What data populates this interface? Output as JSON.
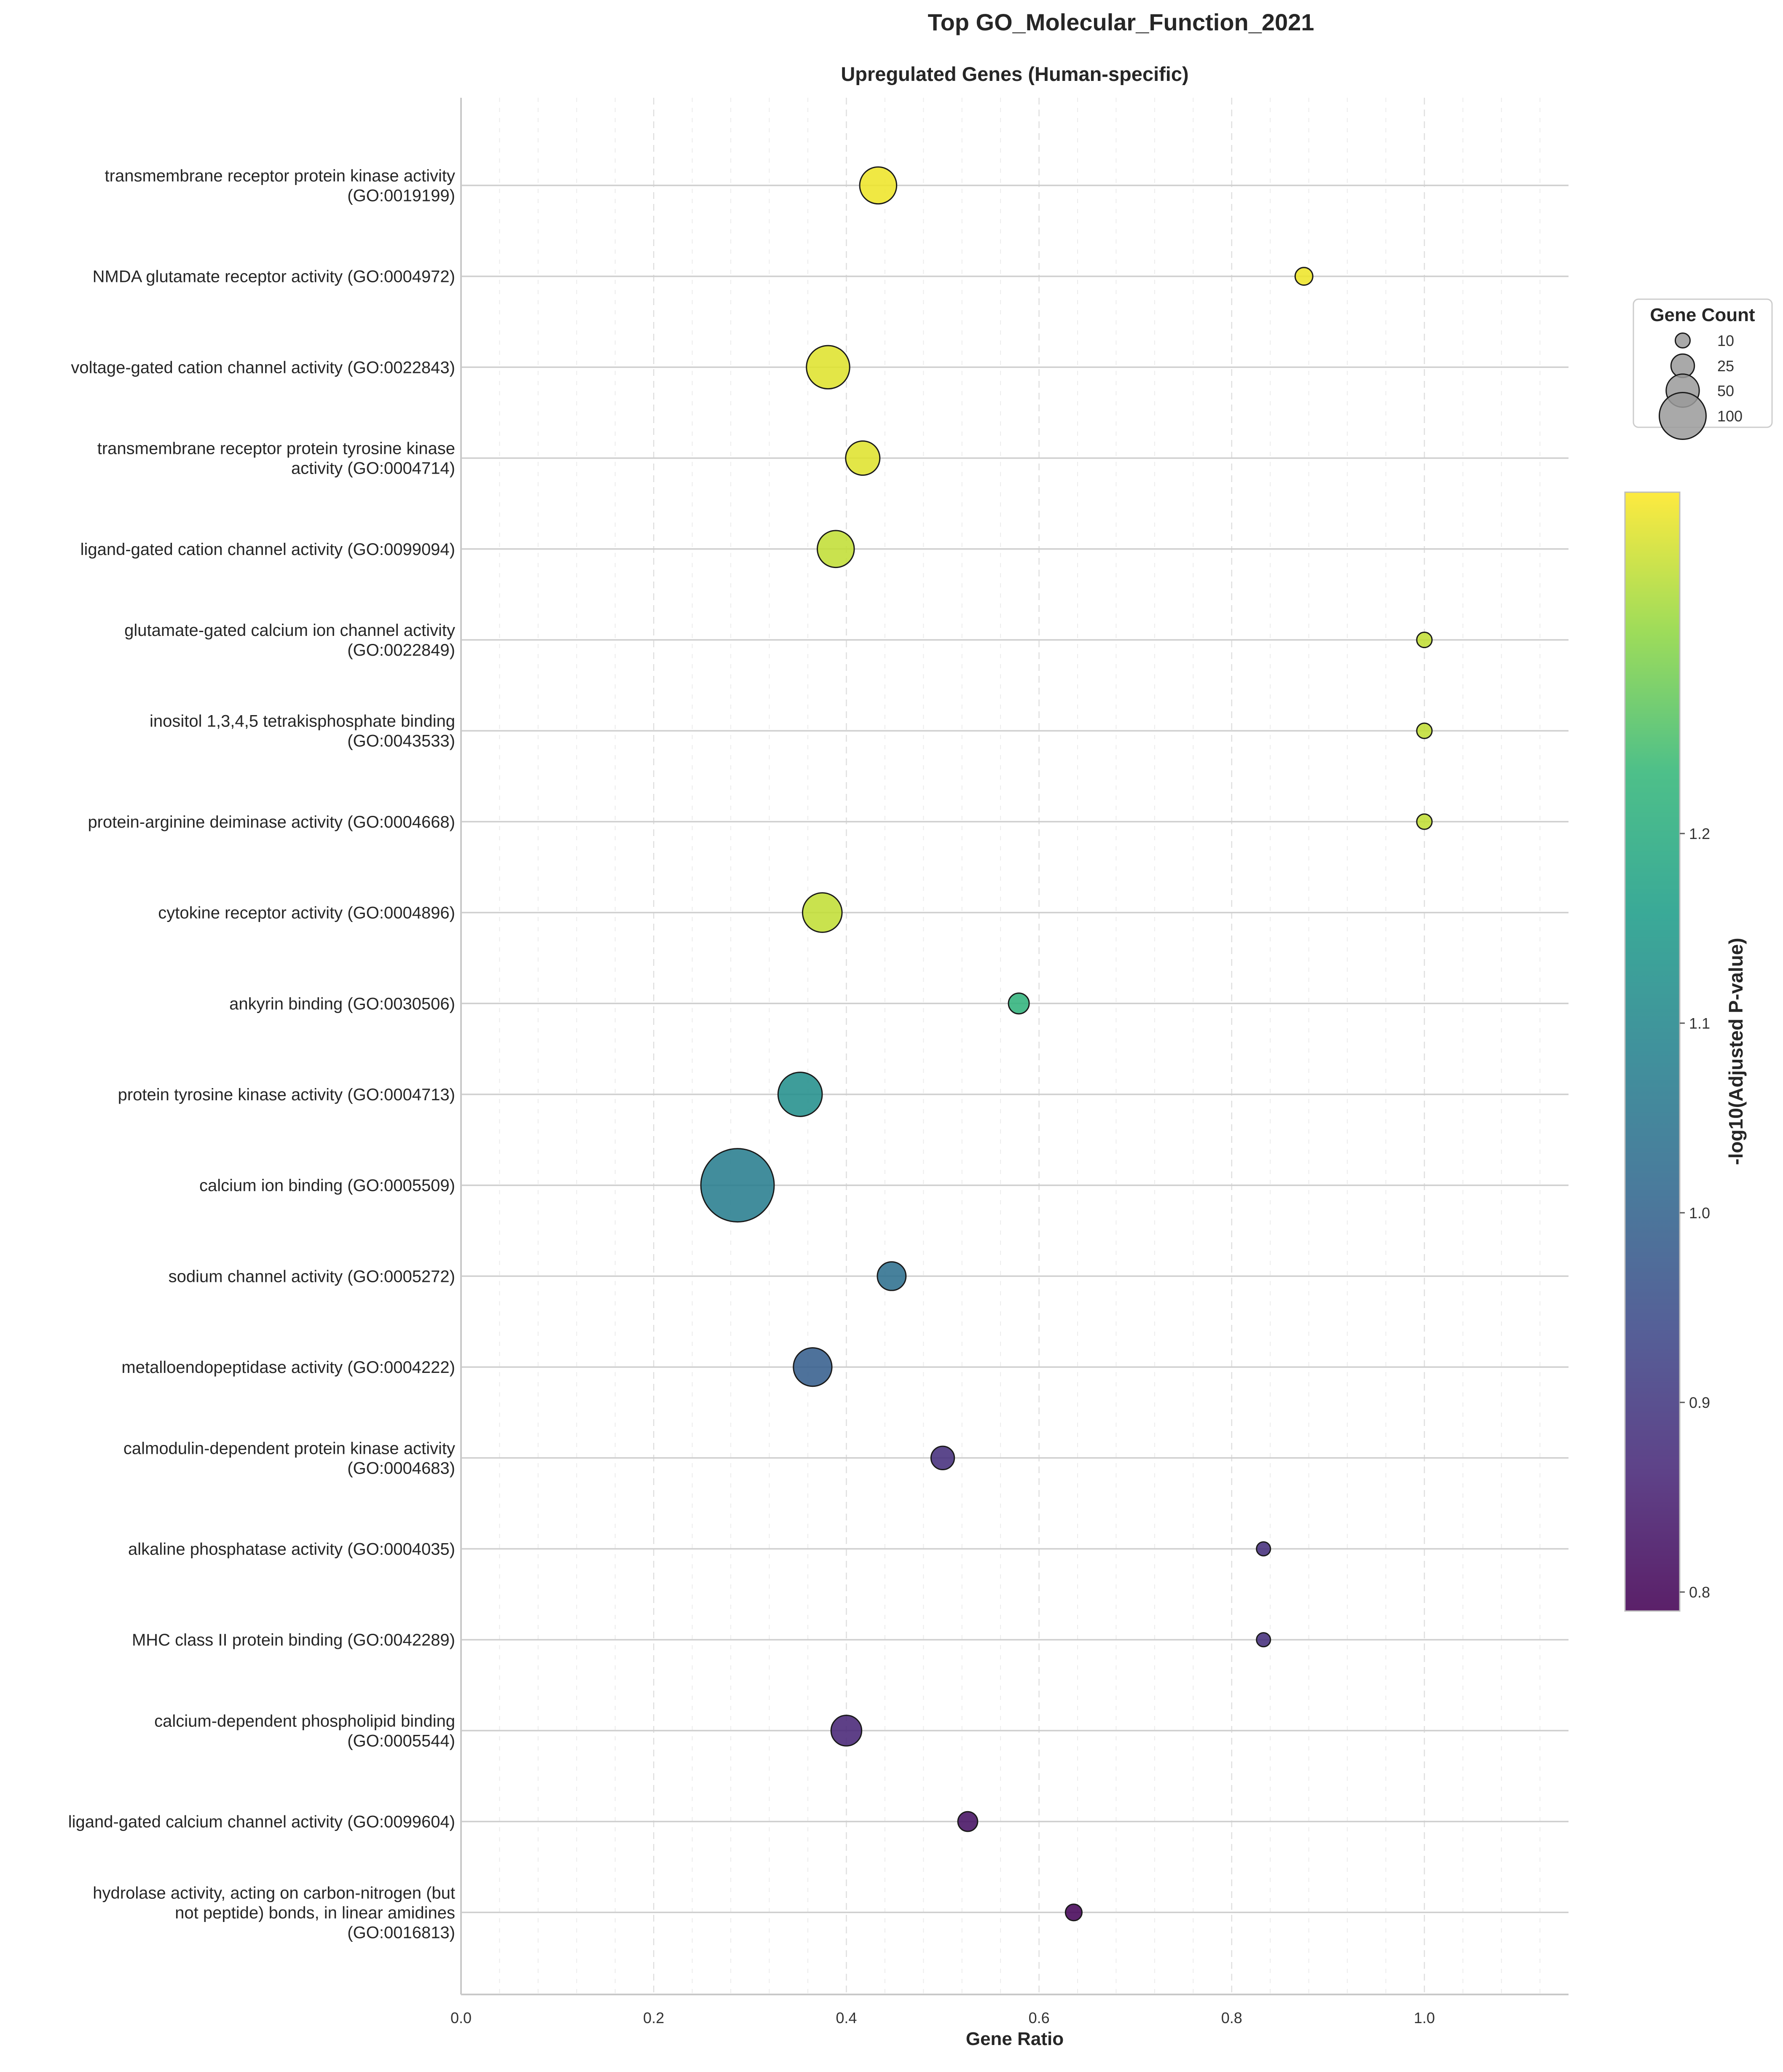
{
  "chart_data": {
    "type": "scatter",
    "title": "Top GO_Molecular_Function_2021",
    "subtitle": "Upregulated Genes (Human-specific)",
    "xlabel": "Gene Ratio",
    "ylabel": "",
    "xlim": [
      0.0,
      1.15
    ],
    "x_ticks": [
      "0.0",
      "0.2",
      "0.4",
      "0.6",
      "0.8",
      "1.0"
    ],
    "grid": true,
    "colormap": "viridis",
    "color_range": [
      0.79,
      1.38
    ],
    "colorbar": {
      "label": "-log10(Adjusted P-value)",
      "ticks": [
        "0.8",
        "0.9",
        "1.0",
        "1.1",
        "1.2"
      ],
      "tick_values": [
        0.8,
        0.9,
        1.0,
        1.1,
        1.2
      ]
    },
    "size_legend": {
      "title": "Gene Count",
      "entries": [
        "10",
        "25",
        "50",
        "100"
      ],
      "values": [
        10,
        25,
        50,
        100
      ]
    },
    "points": [
      {
        "label": [
          "transmembrane receptor protein kinase activity",
          "(GO:0019199)"
        ],
        "x": 0.433,
        "count": 35,
        "neglog10p": 1.37
      },
      {
        "label": [
          "NMDA glutamate receptor activity (GO:0004972)"
        ],
        "x": 0.875,
        "count": 8,
        "neglog10p": 1.37
      },
      {
        "label": [
          "voltage-gated cation channel activity (GO:0022843)"
        ],
        "x": 0.381,
        "count": 48,
        "neglog10p": 1.36
      },
      {
        "label": [
          "transmembrane receptor protein tyrosine kinase",
          "activity (GO:0004714)"
        ],
        "x": 0.417,
        "count": 30,
        "neglog10p": 1.36
      },
      {
        "label": [
          "ligand-gated cation channel activity (GO:0099094)"
        ],
        "x": 0.389,
        "count": 35,
        "neglog10p": 1.34
      },
      {
        "label": [
          "glutamate-gated calcium ion channel activity",
          "(GO:0022849)"
        ],
        "x": 1.0,
        "count": 6,
        "neglog10p": 1.34
      },
      {
        "label": [
          "inositol 1,3,4,5 tetrakisphosphate binding",
          "(GO:0043533)"
        ],
        "x": 1.0,
        "count": 6,
        "neglog10p": 1.34
      },
      {
        "label": [
          "protein-arginine deiminase activity (GO:0004668)"
        ],
        "x": 1.0,
        "count": 6,
        "neglog10p": 1.34
      },
      {
        "label": [
          "cytokine receptor activity (GO:0004896)"
        ],
        "x": 0.375,
        "count": 40,
        "neglog10p": 1.34
      },
      {
        "label": [
          "ankyrin binding (GO:0030506)"
        ],
        "x": 0.579,
        "count": 11,
        "neglog10p": 1.22
      },
      {
        "label": [
          "protein tyrosine kinase activity (GO:0004713)"
        ],
        "x": 0.352,
        "count": 50,
        "neglog10p": 1.12
      },
      {
        "label": [
          "calcium ion binding (GO:0005509)"
        ],
        "x": 0.287,
        "count": 138,
        "neglog10p": 1.07
      },
      {
        "label": [
          "sodium channel activity (GO:0005272)"
        ],
        "x": 0.447,
        "count": 21,
        "neglog10p": 1.03
      },
      {
        "label": [
          "metalloendopeptidase activity (GO:0004222)"
        ],
        "x": 0.365,
        "count": 38,
        "neglog10p": 0.99
      },
      {
        "label": [
          "calmodulin-dependent protein kinase activity",
          "(GO:0004683)"
        ],
        "x": 0.5,
        "count": 14,
        "neglog10p": 0.88
      },
      {
        "label": [
          "alkaline phosphatase activity (GO:0004035)"
        ],
        "x": 0.833,
        "count": 5,
        "neglog10p": 0.88
      },
      {
        "label": [
          "MHC class II protein binding (GO:0042289)"
        ],
        "x": 0.833,
        "count": 5,
        "neglog10p": 0.88
      },
      {
        "label": [
          "calcium-dependent phospholipid binding",
          "(GO:0005544)"
        ],
        "x": 0.4,
        "count": 24,
        "neglog10p": 0.86
      },
      {
        "label": [
          "ligand-gated calcium channel activity (GO:0099604)"
        ],
        "x": 0.526,
        "count": 10,
        "neglog10p": 0.82
      },
      {
        "label": [
          "hydrolase activity, acting on carbon-nitrogen (but",
          "not peptide) bonds, in linear amidines",
          "(GO:0016813)"
        ],
        "x": 0.636,
        "count": 7,
        "neglog10p": 0.8
      }
    ]
  }
}
